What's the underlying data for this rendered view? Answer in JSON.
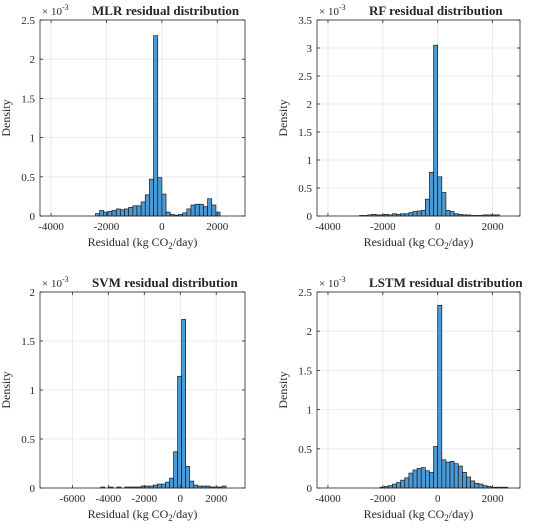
{
  "chart_data": [
    {
      "type": "bar",
      "title": "MLR residual distribution",
      "xlabel_parts": [
        "Residual (kg CO",
        "2",
        "/day)"
      ],
      "ylabel": "Density",
      "exponent": [
        "× 10",
        "-3"
      ],
      "xlim": [
        -4400,
        3000
      ],
      "ylim": [
        0,
        2.5
      ],
      "xticks": [
        -4000,
        -2000,
        0,
        2000
      ],
      "yticks": [
        0,
        0.5,
        1,
        1.5,
        2,
        2.5
      ],
      "bin_width": 150,
      "bins": [
        [
          -2325,
          0.03
        ],
        [
          -2175,
          0.07
        ],
        [
          -2025,
          0.05
        ],
        [
          -1875,
          0.06
        ],
        [
          -1725,
          0.07
        ],
        [
          -1575,
          0.09
        ],
        [
          -1425,
          0.08
        ],
        [
          -1275,
          0.09
        ],
        [
          -1125,
          0.11
        ],
        [
          -975,
          0.13
        ],
        [
          -825,
          0.13
        ],
        [
          -675,
          0.18
        ],
        [
          -525,
          0.27
        ],
        [
          -375,
          0.47
        ],
        [
          -225,
          2.3
        ],
        [
          -75,
          0.49
        ],
        [
          75,
          0.28
        ],
        [
          225,
          0.05
        ],
        [
          375,
          0.02
        ],
        [
          525,
          0.01
        ],
        [
          675,
          0.02
        ],
        [
          825,
          0.04
        ],
        [
          975,
          0.09
        ],
        [
          1125,
          0.14
        ],
        [
          1275,
          0.15
        ],
        [
          1425,
          0.15
        ],
        [
          1575,
          0.12
        ],
        [
          1725,
          0.22
        ],
        [
          1875,
          0.14
        ],
        [
          2025,
          0.05
        ]
      ]
    },
    {
      "type": "bar",
      "title": "RF residual distribution",
      "xlabel_parts": [
        "Residual (kg CO",
        "2",
        "/day)"
      ],
      "ylabel": "Density",
      "exponent": [
        "× 10",
        "-3"
      ],
      "xlim": [
        -4400,
        3000
      ],
      "ylim": [
        0,
        3.5
      ],
      "xticks": [
        -4000,
        -2000,
        0,
        2000
      ],
      "yticks": [
        0,
        0.5,
        1,
        1.5,
        2,
        2.5,
        3,
        3.5
      ],
      "bin_width": 150,
      "bins": [
        [
          -2775,
          0.01
        ],
        [
          -2625,
          0.01
        ],
        [
          -2475,
          0.02
        ],
        [
          -2325,
          0.03
        ],
        [
          -2175,
          0.02
        ],
        [
          -2025,
          0.02
        ],
        [
          -1875,
          0.03
        ],
        [
          -1725,
          0.02
        ],
        [
          -1575,
          0.04
        ],
        [
          -1425,
          0.03
        ],
        [
          -1275,
          0.04
        ],
        [
          -1125,
          0.04
        ],
        [
          -975,
          0.06
        ],
        [
          -825,
          0.08
        ],
        [
          -675,
          0.09
        ],
        [
          -525,
          0.1
        ],
        [
          -375,
          0.3
        ],
        [
          -225,
          0.78
        ],
        [
          -75,
          3.05
        ],
        [
          75,
          0.7
        ],
        [
          225,
          0.42
        ],
        [
          375,
          0.1
        ],
        [
          525,
          0.08
        ],
        [
          675,
          0.04
        ],
        [
          825,
          0.03
        ],
        [
          975,
          0.02
        ],
        [
          1125,
          0.02
        ],
        [
          1275,
          0.01
        ],
        [
          1425,
          0.01
        ],
        [
          1575,
          0.01
        ],
        [
          1725,
          0.02
        ],
        [
          1875,
          0.02
        ],
        [
          2025,
          0.02
        ],
        [
          2175,
          0.02
        ]
      ]
    },
    {
      "type": "bar",
      "title": "SVM residual distribution",
      "xlabel_parts": [
        "Residual (kg CO",
        "2",
        "/day)"
      ],
      "ylabel": "Density",
      "exponent": [
        "× 10",
        "-3"
      ],
      "xlim": [
        -7800,
        3600
      ],
      "ylim": [
        0,
        2
      ],
      "xticks": [
        -6000,
        -4000,
        -2000,
        0,
        2000
      ],
      "yticks": [
        0,
        0.5,
        1,
        1.5,
        2
      ],
      "bin_width": 225,
      "bins": [
        [
          -4312,
          0.01
        ],
        [
          -3862,
          0.01
        ],
        [
          -3412,
          0.01
        ],
        [
          -2962,
          0.01
        ],
        [
          -2737,
          0.01
        ],
        [
          -2512,
          0.01
        ],
        [
          -2287,
          0.01
        ],
        [
          -2062,
          0.02
        ],
        [
          -1837,
          0.02
        ],
        [
          -1612,
          0.02
        ],
        [
          -1387,
          0.03
        ],
        [
          -1162,
          0.04
        ],
        [
          -937,
          0.04
        ],
        [
          -712,
          0.06
        ],
        [
          -487,
          0.1
        ],
        [
          -262,
          0.37
        ],
        [
          -37,
          1.14
        ],
        [
          188,
          1.72
        ],
        [
          413,
          0.22
        ],
        [
          638,
          0.07
        ],
        [
          863,
          0.03
        ],
        [
          1088,
          0.02
        ],
        [
          1313,
          0.02
        ],
        [
          1538,
          0.02
        ],
        [
          1763,
          0.01
        ],
        [
          1988,
          0.01
        ],
        [
          2213,
          0.01
        ],
        [
          2438,
          0.02
        ]
      ]
    },
    {
      "type": "bar",
      "title": "LSTM residual distribution",
      "xlabel_parts": [
        "Residual (kg CO",
        "2",
        "/day)"
      ],
      "ylabel": "Density",
      "exponent": [
        "× 10",
        "-3"
      ],
      "xlim": [
        -4400,
        3000
      ],
      "ylim": [
        0,
        2.5
      ],
      "xticks": [
        -4000,
        -2000,
        0,
        2000
      ],
      "yticks": [
        0,
        0.5,
        1,
        1.5,
        2,
        2.5
      ],
      "bin_width": 150,
      "bins": [
        [
          -2025,
          0.01
        ],
        [
          -1875,
          0.02
        ],
        [
          -1725,
          0.03
        ],
        [
          -1575,
          0.05
        ],
        [
          -1425,
          0.07
        ],
        [
          -1275,
          0.1
        ],
        [
          -1125,
          0.13
        ],
        [
          -975,
          0.19
        ],
        [
          -825,
          0.23
        ],
        [
          -675,
          0.25
        ],
        [
          -525,
          0.26
        ],
        [
          -375,
          0.22
        ],
        [
          -225,
          0.2
        ],
        [
          -75,
          0.53
        ],
        [
          75,
          2.33
        ],
        [
          225,
          0.36
        ],
        [
          375,
          0.33
        ],
        [
          525,
          0.34
        ],
        [
          675,
          0.31
        ],
        [
          825,
          0.28
        ],
        [
          975,
          0.2
        ],
        [
          1125,
          0.14
        ],
        [
          1275,
          0.09
        ],
        [
          1425,
          0.06
        ],
        [
          1575,
          0.05
        ],
        [
          1725,
          0.03
        ],
        [
          1875,
          0.02
        ],
        [
          2025,
          0.01
        ],
        [
          2175,
          0.01
        ],
        [
          2325,
          0.01
        ],
        [
          2475,
          0.01
        ]
      ]
    }
  ],
  "style": {
    "bar_fill": "#4a9ad6",
    "bar_stroke": "#1a1a1a",
    "grid": "#e6e6e6",
    "axis": "#262626"
  }
}
